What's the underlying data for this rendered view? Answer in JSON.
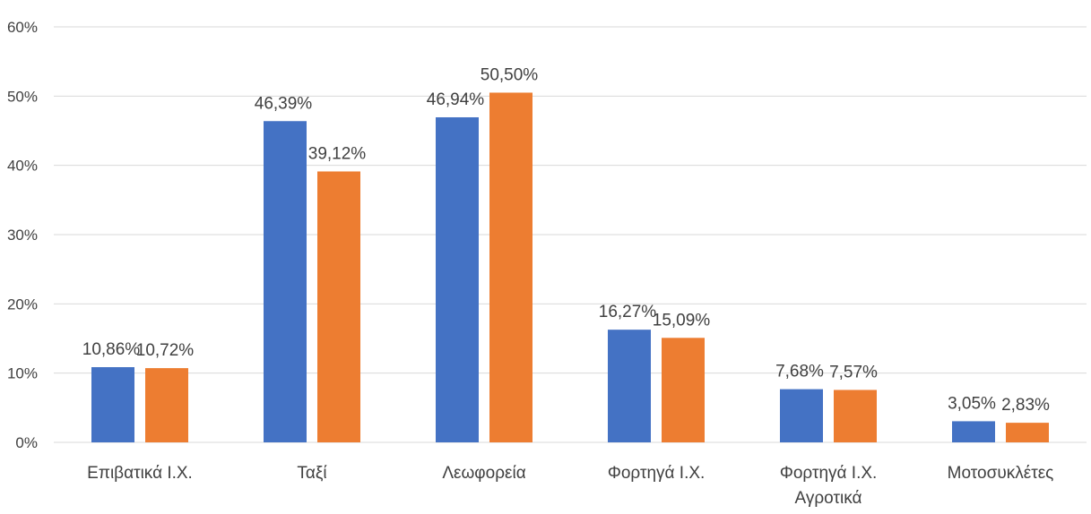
{
  "chart_data": {
    "type": "bar",
    "title": "",
    "xlabel": "",
    "ylabel": "",
    "ylim": [
      0,
      60
    ],
    "y_ticks": [
      0,
      10,
      20,
      30,
      40,
      50,
      60
    ],
    "y_tick_labels": [
      "0%",
      "10%",
      "20%",
      "30%",
      "40%",
      "50%",
      "60%"
    ],
    "grid": true,
    "categories": [
      [
        "Επιβατικά Ι.Χ."
      ],
      [
        "Ταξί"
      ],
      [
        "Λεωφορεία"
      ],
      [
        "Φορτηγά Ι.Χ."
      ],
      [
        "Φορτηγά Ι.Χ.",
        "Αγροτικά"
      ],
      [
        "Μοτοσυκλέτες"
      ]
    ],
    "series": [
      {
        "name": "Series 1",
        "color": "#4472c4",
        "values": [
          10.86,
          46.39,
          46.94,
          16.27,
          7.68,
          3.05
        ],
        "labels": [
          "10,86%",
          "46,39%",
          "46,94%",
          "16,27%",
          "7,68%",
          "3,05%"
        ]
      },
      {
        "name": "Series 2",
        "color": "#ed7d31",
        "values": [
          10.72,
          39.12,
          50.5,
          15.09,
          7.57,
          2.83
        ],
        "labels": [
          "10,72%",
          "39,12%",
          "50,50%",
          "15,09%",
          "7,57%",
          "2,83%"
        ]
      }
    ]
  }
}
